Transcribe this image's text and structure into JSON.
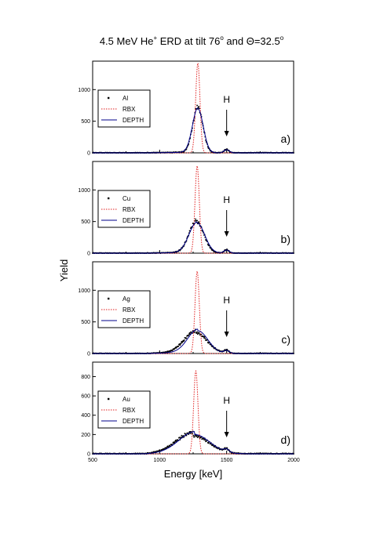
{
  "title": {
    "main": "4.5 MeV He",
    "sup": "+",
    "rest": " ERD at tilt 76",
    "deg": "o",
    "and": " and Θ=32.5",
    "deg2": "o"
  },
  "ylabel": "Yield",
  "xlabel": "Energy [keV]",
  "colors": {
    "data": "#000000",
    "rbx": "#e02020",
    "depth": "#00008b",
    "axis": "#000000"
  },
  "chart_data": [
    {
      "type": "line",
      "panel_label": "a)",
      "xlim": [
        500,
        2000
      ],
      "ylim": [
        0,
        1450
      ],
      "x_ticks": [
        500,
        1000,
        1500,
        2000
      ],
      "x_tick_labels": [
        "500",
        "1000",
        "1500",
        "2000"
      ],
      "y_ticks": [
        0,
        500,
        1000
      ],
      "y_tick_labels": [
        "0",
        "500",
        "1000"
      ],
      "annotation": "H",
      "annotation_x": 1500,
      "legend": [
        "Al",
        "RBX",
        "DEPTH"
      ],
      "series": [
        {
          "name": "Al",
          "style": "points",
          "peak_center": 1285,
          "peak_height": 720,
          "peak_width": 38,
          "h_center": 1500,
          "h_height": 55,
          "h_width": 18,
          "tail": 12
        },
        {
          "name": "RBX",
          "style": "dotted",
          "peak_center": 1285,
          "peak_height": 1420,
          "peak_width": 16,
          "h_center": 1500,
          "h_height": 0,
          "h_width": 10,
          "tail": 0
        },
        {
          "name": "DEPTH",
          "style": "solid",
          "peak_center": 1285,
          "peak_height": 700,
          "peak_width": 40,
          "h_center": 1500,
          "h_height": 50,
          "h_width": 20,
          "tail": 10
        }
      ]
    },
    {
      "type": "line",
      "panel_label": "b)",
      "xlim": [
        500,
        2000
      ],
      "ylim": [
        0,
        1450
      ],
      "x_ticks": [
        500,
        1000,
        1500,
        2000
      ],
      "x_tick_labels": [
        "500",
        "1000",
        "1500",
        "2000"
      ],
      "y_ticks": [
        0,
        500,
        1000
      ],
      "y_tick_labels": [
        "0",
        "500",
        "1000"
      ],
      "annotation": "H",
      "annotation_x": 1500,
      "legend": [
        "Cu",
        "RBX",
        "DEPTH"
      ],
      "series": [
        {
          "name": "Cu",
          "style": "points",
          "peak_center": 1275,
          "peak_height": 500,
          "peak_width": 55,
          "h_center": 1500,
          "h_height": 55,
          "h_width": 18,
          "tail": 15
        },
        {
          "name": "RBX",
          "style": "dotted",
          "peak_center": 1280,
          "peak_height": 1380,
          "peak_width": 16,
          "h_center": 1500,
          "h_height": 0,
          "h_width": 10,
          "tail": 0
        },
        {
          "name": "DEPTH",
          "style": "solid",
          "peak_center": 1278,
          "peak_height": 480,
          "peak_width": 58,
          "h_center": 1500,
          "h_height": 50,
          "h_width": 20,
          "tail": 12
        }
      ]
    },
    {
      "type": "line",
      "panel_label": "c)",
      "xlim": [
        500,
        2000
      ],
      "ylim": [
        0,
        1450
      ],
      "x_ticks": [
        500,
        1000,
        1500,
        2000
      ],
      "x_tick_labels": [
        "500",
        "1000",
        "1500",
        "2000"
      ],
      "y_ticks": [
        0,
        500,
        1000
      ],
      "y_tick_labels": [
        "0",
        "500",
        "1000"
      ],
      "annotation": "H",
      "annotation_x": 1500,
      "legend": [
        "Ag",
        "RBX",
        "DEPTH"
      ],
      "series": [
        {
          "name": "Ag",
          "style": "points",
          "peak_center": 1270,
          "peak_height": 330,
          "peak_width": 85,
          "h_center": 1500,
          "h_height": 50,
          "h_width": 18,
          "tail": 30
        },
        {
          "name": "RBX",
          "style": "dotted",
          "peak_center": 1280,
          "peak_height": 1300,
          "peak_width": 16,
          "h_center": 1500,
          "h_height": 0,
          "h_width": 10,
          "tail": 0
        },
        {
          "name": "DEPTH",
          "style": "solid",
          "peak_center": 1285,
          "peak_height": 360,
          "peak_width": 75,
          "h_center": 1500,
          "h_height": 45,
          "h_width": 20,
          "tail": 25
        }
      ]
    },
    {
      "type": "line",
      "panel_label": "d)",
      "xlim": [
        500,
        2000
      ],
      "ylim": [
        0,
        950
      ],
      "x_ticks": [
        500,
        1000,
        1500,
        2000
      ],
      "x_tick_labels": [
        "500",
        "1000",
        "1500",
        "2000"
      ],
      "y_ticks": [
        0,
        200,
        400,
        600,
        800
      ],
      "y_tick_labels": [
        "0",
        "200",
        "400",
        "600",
        "800"
      ],
      "annotation": "H",
      "annotation_x": 1500,
      "legend": [
        "Au",
        "RBX",
        "DEPTH"
      ],
      "series": [
        {
          "name": "Au",
          "style": "points",
          "peak_center": 1250,
          "peak_height": 190,
          "peak_width": 120,
          "h_center": 1500,
          "h_height": 35,
          "h_width": 18,
          "tail": 35
        },
        {
          "name": "RBX",
          "style": "dotted",
          "peak_center": 1270,
          "peak_height": 860,
          "peak_width": 16,
          "h_center": 1500,
          "h_height": 0,
          "h_width": 10,
          "tail": 0
        },
        {
          "name": "DEPTH",
          "style": "solid",
          "peak_center": 1260,
          "peak_height": 200,
          "peak_width": 115,
          "h_center": 1500,
          "h_height": 30,
          "h_width": 20,
          "tail": 30
        }
      ]
    }
  ]
}
